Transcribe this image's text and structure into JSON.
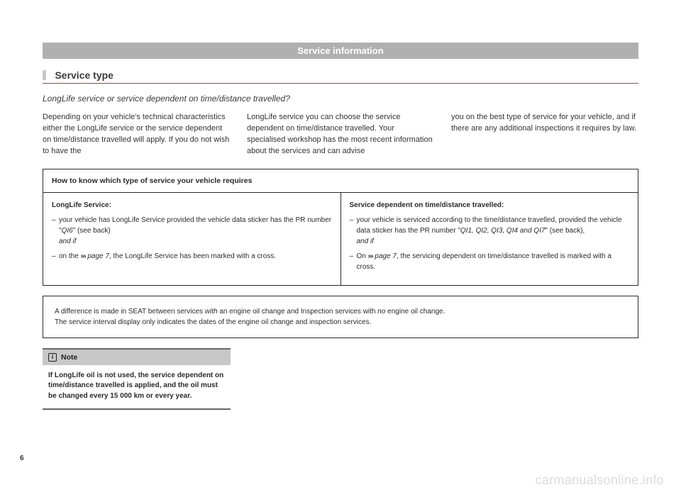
{
  "banner": "Service information",
  "sectionTitle": "Service type",
  "subtitle": "LongLife service or service dependent on time/distance travelled?",
  "columns": {
    "c1": "Depending on your vehicle's technical characteristics either the LongLife service or the service dependent on time/distance travelled will apply. If you do not wish to have the",
    "c2": "LongLife service you can choose the service dependent on time/distance travelled. Your specialised workshop has the most recent information about the services and can advise",
    "c3": "you on the best type of service for your vehicle, and if there are any additional inspections it requires by law."
  },
  "howBox": {
    "header": "How to know which type of service your vehicle requires",
    "left": {
      "lead": "LongLife Service:",
      "b1a": "your vehicle has LongLife Service provided the vehicle data sticker has the PR number \"",
      "b1q": "QI6",
      "b1b": "\" (see back)",
      "b1c": "and if",
      "b2a": "on the ",
      "b2chev": "›››",
      "b2p": " page 7",
      "b2b": ", the LongLife Service has been marked with a cross."
    },
    "right": {
      "lead": "Service dependent on time/distance travelled:",
      "b1a": "your vehicle is serviced according to the time/distance travelled, provided the vehicle data sticker has the PR number \"",
      "b1q": "QI1, QI2, QI3, QI4 and QI7",
      "b1b": "\" (see back),",
      "b1c": "and if",
      "b2a": "On ",
      "b2chev": "›››",
      "b2p": " page 7",
      "b2b": ", the servicing dependent on time/distance travelled is marked with a cross."
    }
  },
  "diffNote": {
    "l1a": "A difference is made in SEAT between services ",
    "l1w": "with",
    "l1b": " an engine oil change and Inspection services with ",
    "l1n": "no",
    "l1c": " engine oil change.",
    "l2": "The service interval display only indicates the dates of the engine oil change and inspection services."
  },
  "note": {
    "title": "Note",
    "body": "If LongLife oil is not used, the service dependent on time/distance travelled is applied, and the oil must be changed every 15 000 km or every year."
  },
  "pageNumber": "6",
  "watermark": "carmanualsonline.info"
}
